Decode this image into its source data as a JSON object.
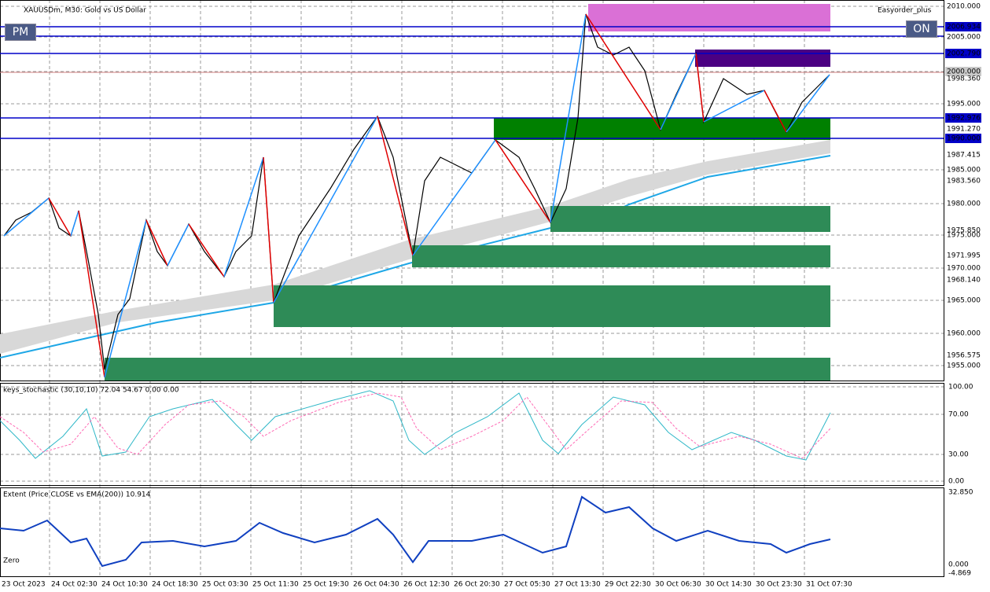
{
  "header": {
    "symbol": "XAUUSDm, M30:  Gold vs US Dollar",
    "expert": "Easyorder_plus",
    "pm": "PM",
    "on": "ON"
  },
  "price_axis": [
    "2010.000",
    "2006.934",
    "2005.000",
    "2002.790",
    "2000.000",
    "1998.360",
    "1995.000",
    "1992.976",
    "1991.270",
    "1990.000",
    "1987.415",
    "1985.000",
    "1983.560",
    "1980.000",
    "1975.850",
    "1975.000",
    "1971.995",
    "1970.000",
    "1968.140",
    "1965.000",
    "1960.000",
    "1956.575",
    "1955.000"
  ],
  "stochastic": {
    "title": "keys_stochastic (30,10,10) 72.04 54.67 0.00 0.00",
    "levels": [
      "100.00",
      "70.00",
      "30.00",
      "0.00"
    ]
  },
  "extent": {
    "title": "Extent (Price CLOSE vs EMA(200)) 10.914",
    "zero": "Zero",
    "levels": [
      "32.850",
      "0.000",
      "-4.869"
    ]
  },
  "time_axis": [
    "23 Oct 2023",
    "24 Oct 02:30",
    "24 Oct 10:30",
    "24 Oct 18:30",
    "25 Oct 03:30",
    "25 Oct 11:30",
    "25 Oct 19:30",
    "26 Oct 04:30",
    "26 Oct 12:30",
    "26 Oct 20:30",
    "27 Oct 05:30",
    "27 Oct 13:30",
    "29 Oct 22:30",
    "30 Oct 06:30",
    "30 Oct 14:30",
    "30 Oct 23:30",
    "31 Oct 07:30"
  ]
}
